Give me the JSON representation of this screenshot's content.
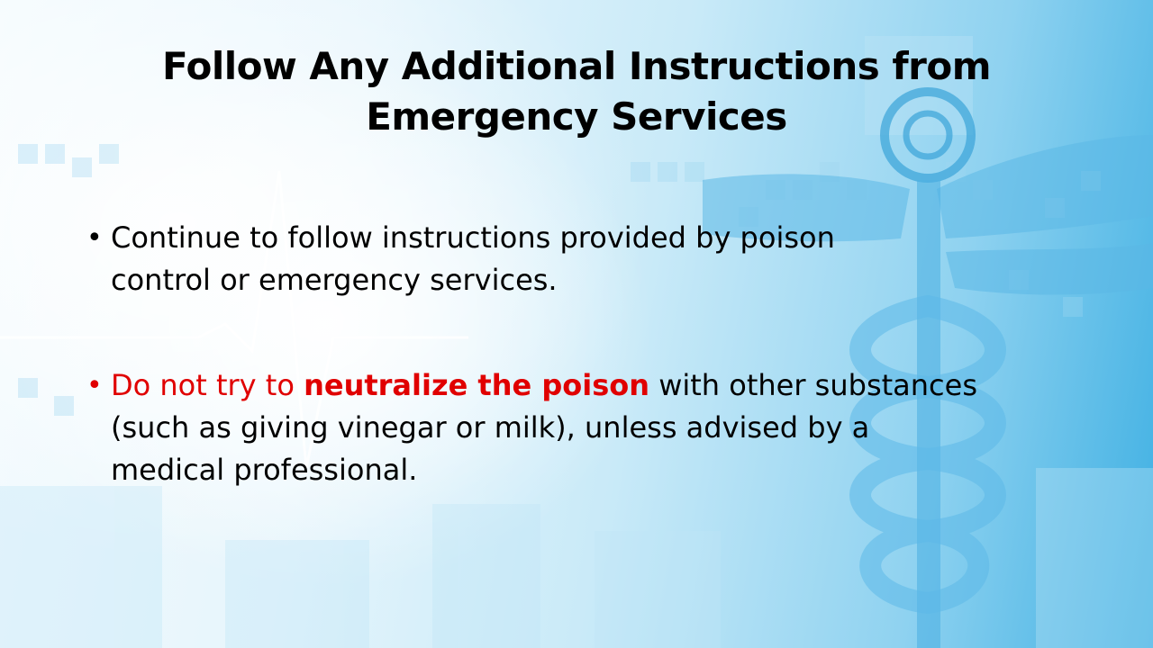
{
  "slide": {
    "title_line1": "Follow Any Additional Instructions from",
    "title_line2": "Emergency Services",
    "bullet_glyph": "•",
    "bullets": [
      {
        "text_line1": "Continue to follow instructions provided by poison",
        "text_line2": "control or emergency services."
      },
      {
        "red_lead": "Do not try to ",
        "red_bold": "neutralize the poison",
        "rest_line1": " with other substances",
        "line2": "(such as giving vinegar or milk), unless advised by a",
        "line3": "medical professional."
      }
    ],
    "colors": {
      "text": "#000000",
      "warning_red": "#e00000",
      "background_accent": "#3fb0e3"
    }
  }
}
